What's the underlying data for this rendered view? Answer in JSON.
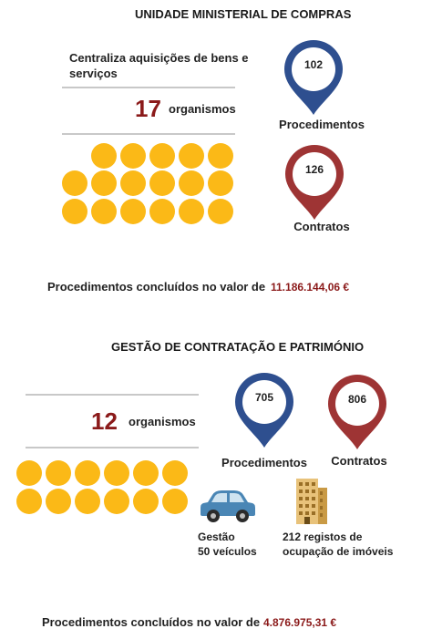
{
  "section1": {
    "title": "UNIDADE MINISTERIAL DE COMPRAS",
    "description": "Centraliza aquisições de bens e serviços",
    "organismos_count": "17",
    "organismos_label": "organismos",
    "procedimentos_value": "102",
    "procedimentos_label": "Procedimentos",
    "contratos_value": "126",
    "contratos_label": "Contratos",
    "total_label": "Procedimentos concluídos no valor de",
    "total_value": "11.186.144,06 €",
    "organism_dots": 17
  },
  "section2": {
    "title": "GESTÃO DE CONTRATAÇÃO E PATRIMÓNIO",
    "organismos_count": "12",
    "organismos_label": "organismos",
    "procedimentos_value": "705",
    "procedimentos_label": "Procedimentos",
    "contratos_value": "806",
    "contratos_label": "Contratos",
    "vehicles_label_line1": "Gestão",
    "vehicles_label_line2": "50 veículos",
    "buildings_label_line1": "212 registos de",
    "buildings_label_line2": "ocupação de imóveis",
    "total_label": "Procedimentos concluídos no valor de",
    "total_value": "4.876.975,31 €",
    "organism_dots": 12
  },
  "colors": {
    "pin_blue": "#2e4f8f",
    "pin_red": "#9e3434",
    "dot_yellow": "#fbb917",
    "accent_value": "#8b1a1a"
  },
  "icons": [
    "map-pin-icon",
    "car-icon",
    "building-icon"
  ]
}
